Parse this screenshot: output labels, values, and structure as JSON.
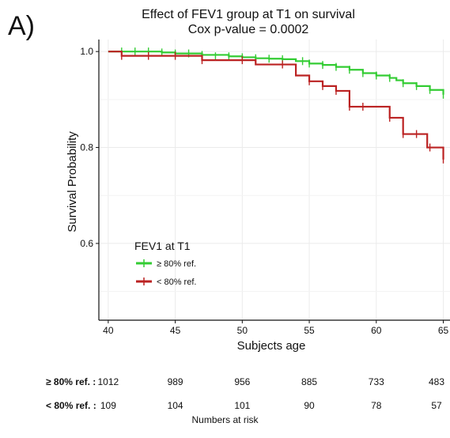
{
  "panel_label": "A)",
  "chart_data": {
    "type": "line",
    "title": "Effect of FEV1 group at T1 on survival",
    "subtitle": "Cox p-value = 0.0002",
    "xlabel": "Subjects age",
    "ylabel": "Survival Probability",
    "xlim": [
      39.3,
      65.5
    ],
    "ylim": [
      0.44,
      1.025
    ],
    "x_ticks": [
      40,
      45,
      50,
      55,
      60,
      65
    ],
    "y_ticks": [
      0.6,
      0.8,
      1.0
    ],
    "y_tick_labels": [
      "0.6",
      "0.8",
      "1.0"
    ],
    "grid": true,
    "legend": {
      "title": "FEV1 at T1",
      "placement": "bottom-left"
    },
    "series": [
      {
        "name": "≥ 80% ref.",
        "color": "#33cc33",
        "steps": [
          [
            40,
            1.0
          ],
          [
            44,
            0.998
          ],
          [
            45,
            0.996
          ],
          [
            47,
            0.993
          ],
          [
            49,
            0.99
          ],
          [
            50,
            0.988
          ],
          [
            51,
            0.986
          ],
          [
            52,
            0.985
          ],
          [
            53,
            0.984
          ],
          [
            54,
            0.98
          ],
          [
            55,
            0.975
          ],
          [
            56,
            0.972
          ],
          [
            57,
            0.968
          ],
          [
            58,
            0.962
          ],
          [
            59,
            0.955
          ],
          [
            60,
            0.95
          ],
          [
            61,
            0.945
          ],
          [
            61.5,
            0.94
          ],
          [
            62,
            0.934
          ],
          [
            63,
            0.928
          ],
          [
            64,
            0.92
          ],
          [
            65,
            0.91
          ]
        ],
        "censored": [
          [
            41,
            1.0
          ],
          [
            42,
            1.0
          ],
          [
            43,
            1.0
          ],
          [
            44,
            0.998
          ],
          [
            45,
            0.996
          ],
          [
            46,
            0.996
          ],
          [
            47,
            0.993
          ],
          [
            48,
            0.99
          ],
          [
            49,
            0.99
          ],
          [
            50,
            0.988
          ],
          [
            51,
            0.986
          ],
          [
            52,
            0.985
          ],
          [
            53,
            0.984
          ],
          [
            54.5,
            0.98
          ],
          [
            55,
            0.975
          ],
          [
            56,
            0.972
          ],
          [
            57,
            0.968
          ],
          [
            58,
            0.962
          ],
          [
            59,
            0.955
          ],
          [
            60,
            0.95
          ],
          [
            61,
            0.945
          ],
          [
            62,
            0.934
          ],
          [
            63,
            0.928
          ],
          [
            64,
            0.92
          ],
          [
            65,
            0.91
          ]
        ]
      },
      {
        "name": "< 80% ref.",
        "color": "#bb2222",
        "steps": [
          [
            40,
            1.0
          ],
          [
            41,
            0.991
          ],
          [
            47,
            0.982
          ],
          [
            51,
            0.973
          ],
          [
            54,
            0.95
          ],
          [
            55,
            0.938
          ],
          [
            56,
            0.928
          ],
          [
            57,
            0.918
          ],
          [
            58,
            0.885
          ],
          [
            60,
            0.885
          ],
          [
            61,
            0.862
          ],
          [
            62,
            0.828
          ],
          [
            63.8,
            0.8
          ],
          [
            65,
            0.775
          ]
        ],
        "censored": [
          [
            41,
            0.991
          ],
          [
            43,
            0.991
          ],
          [
            45,
            0.991
          ],
          [
            47,
            0.982
          ],
          [
            50,
            0.982
          ],
          [
            53,
            0.973
          ],
          [
            55,
            0.938
          ],
          [
            56,
            0.928
          ],
          [
            57,
            0.918
          ],
          [
            58,
            0.885
          ],
          [
            59,
            0.885
          ],
          [
            61,
            0.862
          ],
          [
            62,
            0.828
          ],
          [
            63,
            0.828
          ],
          [
            64,
            0.8
          ],
          [
            65,
            0.775
          ]
        ]
      }
    ],
    "risk_table": {
      "title": "Numbers at risk",
      "ages": [
        40,
        45,
        50,
        55,
        60,
        65
      ],
      "rows": [
        {
          "label": "≥ 80% ref. :",
          "values": [
            "1012",
            "989",
            "956",
            "885",
            "733",
            "483"
          ]
        },
        {
          "label": "< 80% ref. :",
          "values": [
            "109",
            "104",
            "101",
            "90",
            "78",
            "57"
          ]
        }
      ]
    }
  }
}
